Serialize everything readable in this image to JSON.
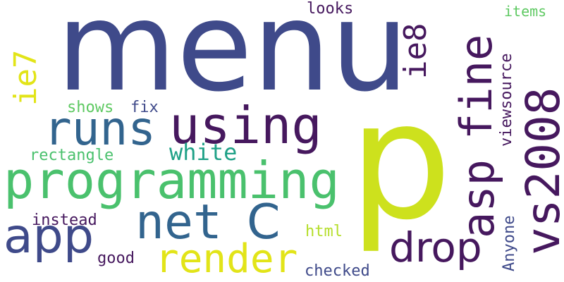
{
  "colors": {
    "background": "#ffffff",
    "dark_purple": "#46185e",
    "indigo": "#3f4a8a",
    "steel_blue": "#32648e",
    "teal": "#25838e",
    "green_teal": "#1fa187",
    "green": "#4ac16d",
    "light_green": "#5ec962",
    "lime": "#b5de2b",
    "yellow": "#e2e418",
    "yellow_green": "#cde11d"
  },
  "words": {
    "menu": "menu",
    "p": "p",
    "programming": "programming",
    "using": "using",
    "runs": "runs",
    "net": "net",
    "c": "C",
    "app": "app",
    "render": "render",
    "drop": "drop",
    "asp": "asp",
    "fine": "fine",
    "vs2008": "vs2008",
    "ie7": "ie7",
    "ie8": "ie8",
    "white": "white",
    "looks": "looks",
    "items": "items",
    "viewsource": "viewsource",
    "shows": "shows",
    "fix": "fix",
    "rectangle": "rectangle",
    "instead": "instead",
    "html": "html",
    "good": "good",
    "checked": "checked",
    "anyone": "Anyone"
  }
}
